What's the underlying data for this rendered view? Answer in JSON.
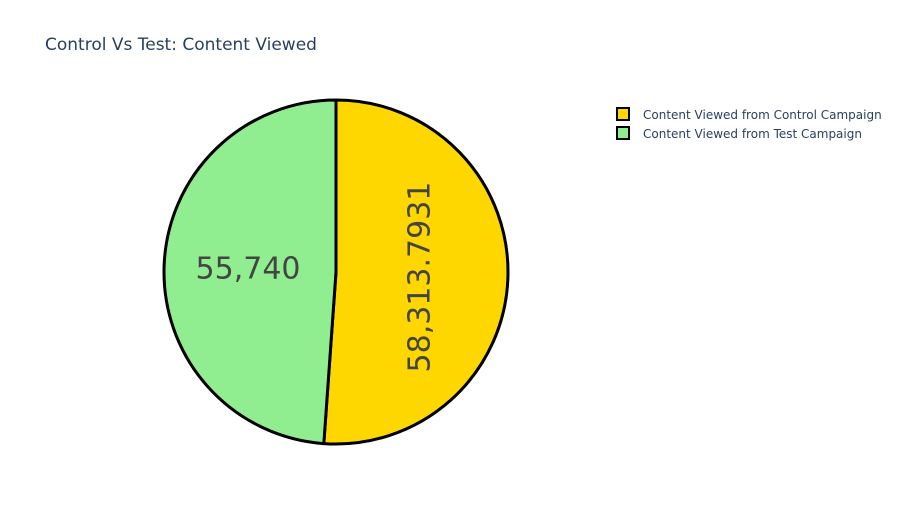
{
  "chart_data": {
    "type": "pie",
    "title": "Control Vs Test: Content Viewed",
    "slices": [
      {
        "label": "Content Viewed from Control Campaign",
        "value": 58313.7931,
        "text": "58,313.7931",
        "color": "#FFD700"
      },
      {
        "label": "Content Viewed from Test Campaign",
        "value": 55740,
        "text": "55,740",
        "color": "#90EE90"
      }
    ],
    "slice_outline_color": "#000000",
    "legend_position": "top-right"
  }
}
